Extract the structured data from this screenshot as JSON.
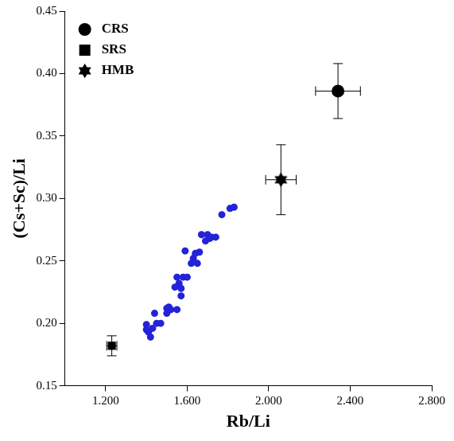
{
  "chart_data": {
    "type": "scatter",
    "x_label": "Rb/Li",
    "y_label": "(Cs+Sc)/Li",
    "xlim": [
      1.0,
      2.8
    ],
    "xticks": [
      {
        "value": 1.2,
        "label": "1.200"
      },
      {
        "value": 1.6,
        "label": "1.600"
      },
      {
        "value": 2.0,
        "label": "2.000"
      },
      {
        "value": 2.4,
        "label": "2.400"
      },
      {
        "value": 2.8,
        "label": "2.800"
      }
    ],
    "ylim": [
      0.15,
      0.45
    ],
    "yticks": [
      0.15,
      {
        "value": 0.2,
        "label": "0.20"
      },
      0.25,
      {
        "value": 0.3,
        "label": "0.30"
      },
      0.35,
      {
        "value": 0.4,
        "label": "0.40"
      },
      0.45
    ],
    "grid": false,
    "legend": "upper left",
    "series": [
      {
        "color": "#2323d8",
        "marker": "circle",
        "x": [
          1.4,
          1.4,
          1.41,
          1.42,
          1.43,
          1.44,
          1.45,
          1.47,
          1.5,
          1.5,
          1.51,
          1.52,
          1.54,
          1.55,
          1.55,
          1.56,
          1.57,
          1.57,
          1.58,
          1.59,
          1.6,
          1.62,
          1.63,
          1.64,
          1.65,
          1.66,
          1.67,
          1.69,
          1.7,
          1.71,
          1.72,
          1.74,
          1.77,
          1.81,
          1.83
        ],
        "values": [
          0.199,
          0.195,
          0.193,
          0.189,
          0.196,
          0.208,
          0.2,
          0.2,
          0.208,
          0.212,
          0.213,
          0.211,
          0.229,
          0.237,
          0.211,
          0.232,
          0.222,
          0.228,
          0.237,
          0.258,
          0.237,
          0.248,
          0.252,
          0.256,
          0.248,
          0.257,
          0.271,
          0.266,
          0.271,
          0.268,
          0.269,
          0.269,
          0.287,
          0.292,
          0.293
        ]
      },
      {
        "name": "CRS",
        "color": "#000000",
        "marker": "circle",
        "x": [
          2.34
        ],
        "values": [
          0.386
        ],
        "x_error": [
          0.11
        ],
        "y_error": [
          0.022
        ]
      },
      {
        "name": "SRS",
        "color": "#000000",
        "marker": "square",
        "x": [
          1.23
        ],
        "values": [
          0.182
        ],
        "x_error": [
          0.025
        ],
        "y_error": [
          0.008
        ]
      },
      {
        "name": "HMB",
        "color": "#000000",
        "marker": "star",
        "x": [
          2.06
        ],
        "values": [
          0.315
        ],
        "x_error": [
          0.075
        ],
        "y_error": [
          0.028
        ]
      }
    ]
  }
}
